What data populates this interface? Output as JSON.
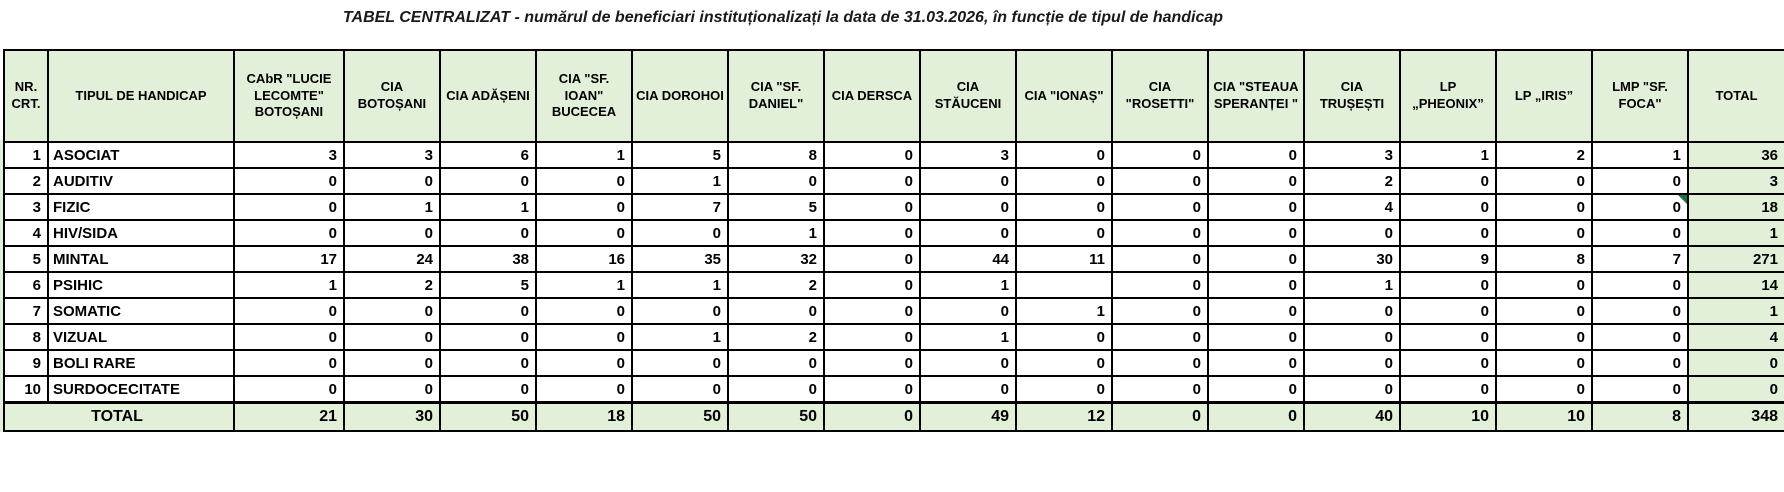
{
  "title": "TABEL CENTRALIZAT - numărul de beneficiari instituționalizați la data de 31.03.2026, în funcție de tipul de handicap",
  "colors": {
    "header_bg": "#e2f0d9",
    "cell_bg": "#ffffff",
    "border": "#000000",
    "comment_indicator": "#1e7145"
  },
  "table": {
    "columns": [
      "NR. CRT.",
      "TIPUL DE HANDICAP",
      "CAbR \"LUCIE LECOMTE\" BOTOȘANI",
      "CIA BOTOȘANI",
      "CIA ADĂȘENI",
      "CIA \"SF. IOAN\" BUCECEA",
      "CIA DOROHOI",
      "CIA \"SF. DANIEL\"",
      "CIA DERSCA",
      "CIA STĂUCENI",
      "CIA \"IONAȘ\"",
      "CIA \"ROSETTI\"",
      "CIA \"STEAUA SPERANȚEI \"",
      "CIA TRUȘEȘTI",
      "LP „PHEONIX”",
      "LP „IRIS”",
      "LMP \"SF. FOCA\"",
      "TOTAL"
    ],
    "rows": [
      {
        "nr": "1",
        "type": "ASOCIAT",
        "values": [
          "3",
          "3",
          "6",
          "1",
          "5",
          "8",
          "0",
          "3",
          "0",
          "0",
          "0",
          "3",
          "1",
          "2",
          "1"
        ],
        "total": "36"
      },
      {
        "nr": "2",
        "type": "AUDITIV",
        "values": [
          "0",
          "0",
          "0",
          "0",
          "1",
          "0",
          "0",
          "0",
          "0",
          "0",
          "0",
          "2",
          "0",
          "0",
          "0"
        ],
        "total": "3"
      },
      {
        "nr": "3",
        "type": "FIZIC",
        "values": [
          "0",
          "1",
          "1",
          "0",
          "7",
          "5",
          "0",
          "0",
          "0",
          "0",
          "0",
          "4",
          "0",
          "0",
          "0"
        ],
        "total": "18"
      },
      {
        "nr": "4",
        "type": "HIV/SIDA",
        "values": [
          "0",
          "0",
          "0",
          "0",
          "0",
          "1",
          "0",
          "0",
          "0",
          "0",
          "0",
          "0",
          "0",
          "0",
          "0"
        ],
        "total": "1"
      },
      {
        "nr": "5",
        "type": "MINTAL",
        "values": [
          "17",
          "24",
          "38",
          "16",
          "35",
          "32",
          "0",
          "44",
          "11",
          "0",
          "0",
          "30",
          "9",
          "8",
          "7"
        ],
        "total": "271"
      },
      {
        "nr": "6",
        "type": "PSIHIC",
        "values": [
          "1",
          "2",
          "5",
          "1",
          "1",
          "2",
          "0",
          "1",
          "",
          "0",
          "0",
          "1",
          "0",
          "0",
          "0"
        ],
        "total": "14"
      },
      {
        "nr": "7",
        "type": "SOMATIC",
        "values": [
          "0",
          "0",
          "0",
          "0",
          "0",
          "0",
          "0",
          "0",
          "1",
          "0",
          "0",
          "0",
          "0",
          "0",
          "0"
        ],
        "total": "1"
      },
      {
        "nr": "8",
        "type": "VIZUAL",
        "values": [
          "0",
          "0",
          "0",
          "0",
          "1",
          "2",
          "0",
          "1",
          "0",
          "0",
          "0",
          "0",
          "0",
          "0",
          "0"
        ],
        "total": "4"
      },
      {
        "nr": "9",
        "type": "BOLI RARE",
        "values": [
          "0",
          "0",
          "0",
          "0",
          "0",
          "0",
          "0",
          "0",
          "0",
          "0",
          "0",
          "0",
          "0",
          "0",
          "0"
        ],
        "total": "0"
      },
      {
        "nr": "10",
        "type": "SURDOCECITATE",
        "values": [
          "0",
          "0",
          "0",
          "0",
          "0",
          "0",
          "0",
          "0",
          "0",
          "0",
          "0",
          "0",
          "0",
          "0",
          "0"
        ],
        "total": "0"
      }
    ],
    "total_row": {
      "label": "TOTAL",
      "values": [
        "21",
        "30",
        "50",
        "18",
        "50",
        "50",
        "0",
        "49",
        "12",
        "0",
        "0",
        "40",
        "10",
        "10",
        "8"
      ],
      "total": "348"
    },
    "comment_indicator": {
      "row_index": 2,
      "value_index": 14
    }
  }
}
